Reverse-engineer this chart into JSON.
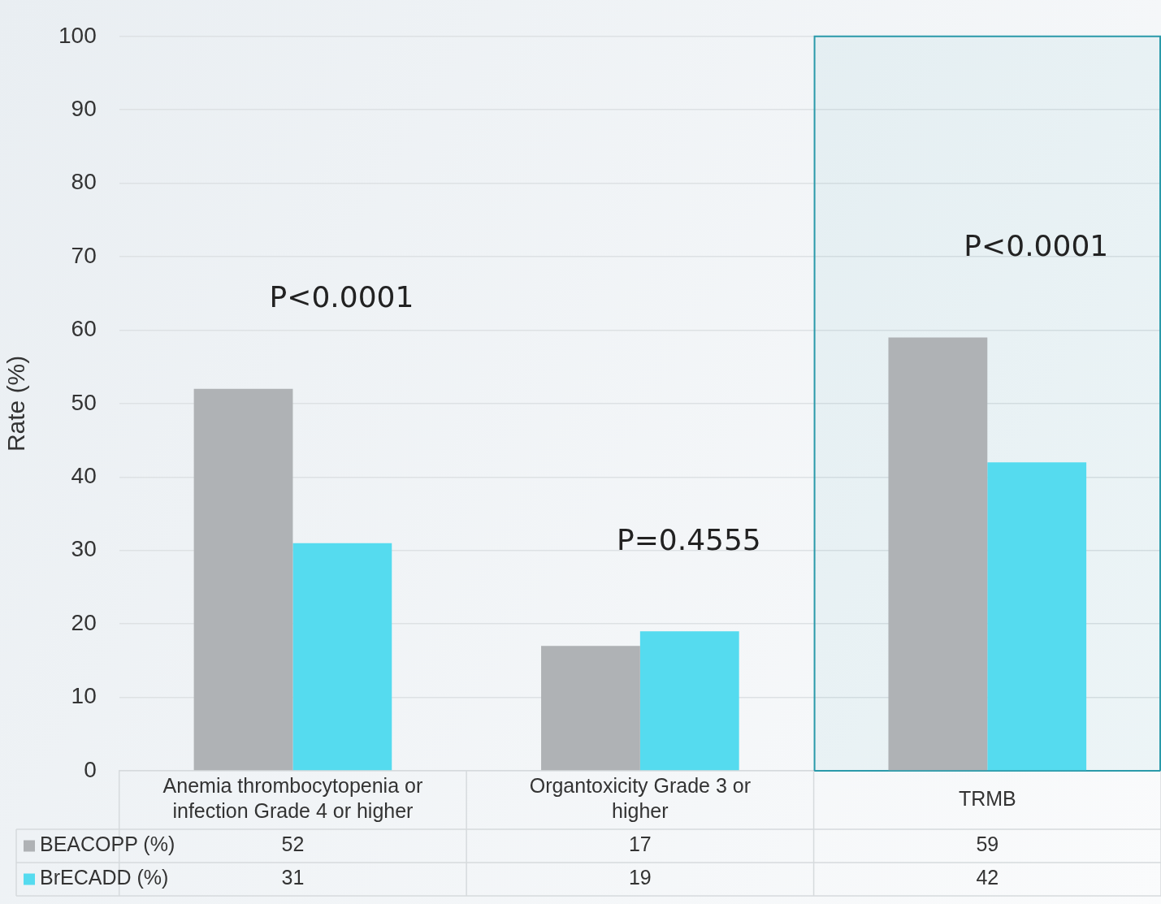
{
  "chart_data": {
    "type": "bar",
    "ylabel": "Rate (%)",
    "categories": [
      "Anemia thrombocytopenia or infection Grade 4 or higher",
      "Organtoxicity Grade 3 or higher",
      "TRMB"
    ],
    "series": [
      {
        "name": "BEACOPP (%)",
        "color": "#afb2b5",
        "values": [
          52,
          17,
          59
        ]
      },
      {
        "name": "BrECADD (%)",
        "color": "#55dbef",
        "values": [
          31,
          19,
          42
        ]
      }
    ],
    "ylim": [
      0,
      100
    ],
    "yticks": [
      0,
      10,
      20,
      30,
      40,
      50,
      60,
      70,
      80,
      90,
      100
    ],
    "grid": "y",
    "legend": "bottom",
    "data_labels": true,
    "bands": [
      {
        "axis": "x",
        "from": "TRMB",
        "to": "TRMB",
        "color": "#2a9aaa"
      }
    ],
    "annotations": [
      "P<0.0001",
      "P=0.4555",
      "P<0.0001"
    ]
  }
}
